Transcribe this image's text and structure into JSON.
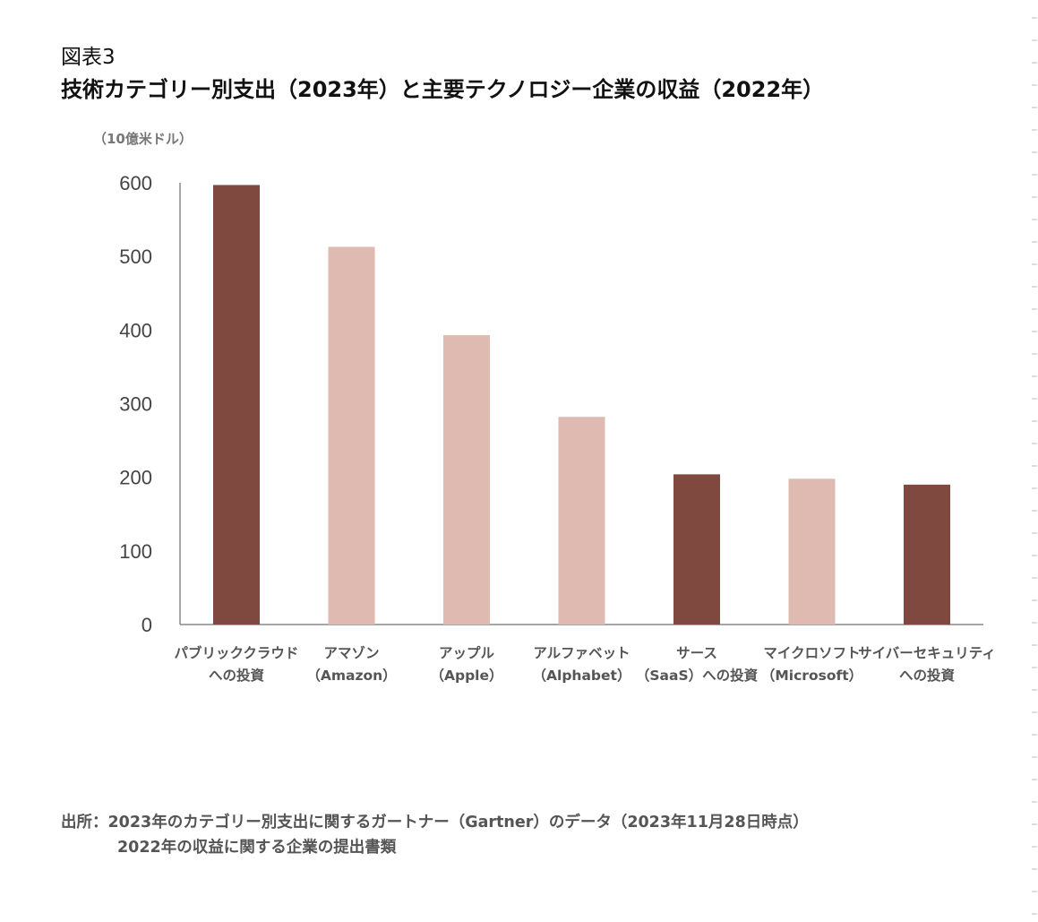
{
  "figure_label": "図表3",
  "title": "技術カテゴリー別支出（2023年）と主要テクノロジー企業の収益（2022年）",
  "unit_label": "（10億米ドル）",
  "source": {
    "line1": "出所：2023年のカテゴリー別支出に関するガートナー（Gartner）のデータ（2023年11月28日時点）",
    "line2": "2022年の収益に関する企業の提出書類"
  },
  "colors": {
    "spending": "#7f4940",
    "revenue": "#dfbab0",
    "axis": "#888888",
    "tick_text": "#444444",
    "category_text": "#555555"
  },
  "chart_data": {
    "type": "bar",
    "title": "技術カテゴリー別支出（2023年）と主要テクノロジー企業の収益（2022年）",
    "ylabel": "（10億米ドル）",
    "ylim": [
      0,
      600
    ],
    "yticks": [
      0,
      100,
      200,
      300,
      400,
      500,
      600
    ],
    "grid": false,
    "categories": [
      [
        "パブリッククラウド",
        "への投資"
      ],
      [
        "アマゾン",
        "（Amazon）"
      ],
      [
        "アップル",
        "（Apple）"
      ],
      [
        "アルファベット",
        "（Alphabet）"
      ],
      [
        "サース",
        "（SaaS）への投資"
      ],
      [
        "マイクロソフト",
        "（Microsoft）"
      ],
      [
        "サイバーセキュリティ",
        "への投資"
      ]
    ],
    "values": [
      597,
      513,
      393,
      282,
      204,
      198,
      190
    ],
    "bar_kind": [
      "spending",
      "revenue",
      "revenue",
      "revenue",
      "spending",
      "revenue",
      "spending"
    ]
  }
}
